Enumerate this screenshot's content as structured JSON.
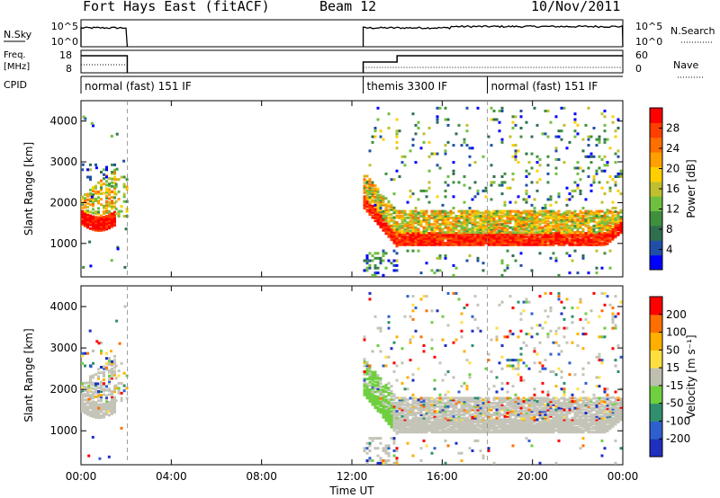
{
  "header": {
    "station": "Fort Hays East (fitACF)",
    "beam": "Beam 12",
    "date": "10/Nov/2011"
  },
  "param_panels": {
    "sky_label": "N.Sky",
    "sky_ticks": [
      "10^5",
      "10^0"
    ],
    "search_label": "N.Search",
    "search_ticks": [
      "10^5",
      "10^0"
    ],
    "freq_label_line1": "Freq.",
    "freq_label_line2": "[MHz]",
    "freq_ticks": [
      "18",
      "8"
    ],
    "nave_label": "Nave",
    "nave_ticks": [
      "60",
      "0"
    ],
    "cpid_label": "CPID",
    "modes": [
      {
        "label": "normal (fast) 151 IF",
        "start_hr": 0.0,
        "end_hr": 2.0
      },
      {
        "label": "themis 3300 IF",
        "start_hr": 12.5,
        "end_hr": 18.0
      },
      {
        "label": "normal (fast) 151 IF",
        "start_hr": 18.0,
        "end_hr": 24.0
      }
    ]
  },
  "power_colorbar": {
    "title": "Power [dB]",
    "ticks": [
      "28",
      "24",
      "20",
      "16",
      "12",
      "8",
      "4"
    ],
    "colors": [
      "#0000ff",
      "#1f4fa8",
      "#2f6f4f",
      "#3f8f3f",
      "#6fbf3f",
      "#bfbf2f",
      "#ffcf00",
      "#ff9f00",
      "#ff6f00",
      "#ff3f00",
      "#ff0000"
    ]
  },
  "velocity_colorbar": {
    "title": "Velocity [m s⁻¹]",
    "ticks": [
      "200",
      "100",
      "50",
      "15",
      "-15",
      "-50",
      "-100",
      "-200"
    ],
    "colors": [
      "#1f2fbf",
      "#2f5fcf",
      "#2f8f6f",
      "#6fcf3f",
      "#bfbfb0",
      "#ffdf3f",
      "#ffaf00",
      "#ff6f00",
      "#ff0000"
    ]
  },
  "axes": {
    "ylabel": "Slant Range [km]",
    "yticks": [
      "1000",
      "2000",
      "3000",
      "4000"
    ],
    "xlabel": "Time UT",
    "xticks": [
      "00:00",
      "04:00",
      "08:00",
      "12:00",
      "16:00",
      "20:00",
      "00:00"
    ]
  },
  "chart_data": {
    "type": "heatmap",
    "xlabel": "Time UT",
    "ylabel": "Slant Range [km]",
    "xlim_hours": [
      0,
      24
    ],
    "ylim_km": [
      180,
      4500
    ],
    "observing_intervals_hr": [
      [
        0.0,
        2.05
      ],
      [
        12.5,
        24.0
      ]
    ],
    "power_db_range": [
      0,
      30
    ],
    "velocity_range": [
      -200,
      200
    ],
    "backscatter_bands": [
      {
        "start_hr": 0.0,
        "end_hr": 1.5,
        "range_km": [
          1500,
          2600
        ],
        "power_db": 26
      },
      {
        "start_hr": 12.5,
        "end_hr": 24.0,
        "range_km": [
          900,
          1300
        ],
        "power_db": 28
      },
      {
        "start_hr": 12.5,
        "end_hr": 24.0,
        "range_km": [
          1300,
          1900
        ],
        "power_db": 18
      }
    ]
  }
}
